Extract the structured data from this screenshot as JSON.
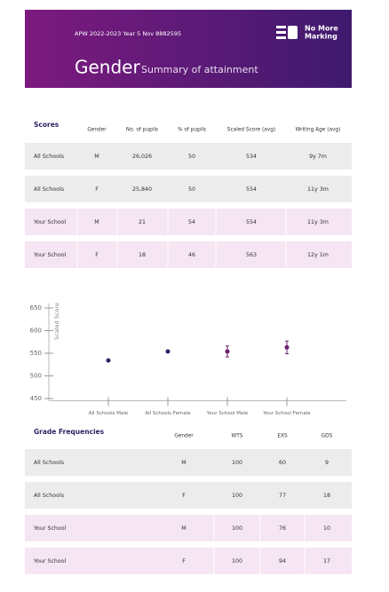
{
  "header": {
    "report": "APW 2022-2023 Year 5 Nov 8882595",
    "logo": [
      "No More",
      "Marking"
    ],
    "title": "Gender",
    "subtitle": "Summary of attainment"
  },
  "scores": {
    "title": "Scores",
    "columns": [
      "Gender",
      "No. of pupils",
      "% of pupils",
      "Scaled Score (avg)",
      "Writing Age (avg)"
    ],
    "rows": [
      [
        "All Schools",
        "M",
        "26,026",
        "50",
        "534",
        "9y 7m"
      ],
      [
        "All Schools",
        "F",
        "25,840",
        "50",
        "554",
        "11y 3m"
      ],
      [
        "Your School",
        "M",
        "21",
        "54",
        "554",
        "11y 3m"
      ],
      [
        "Your School",
        "F",
        "18",
        "46",
        "563",
        "12y 1m"
      ]
    ]
  },
  "chart_data": {
    "type": "scatter",
    "y_label": "Scaled Score",
    "categories": [
      "All Schools Male",
      "All Schools Female",
      "Your School Male",
      "Your School Female"
    ],
    "values": [
      534,
      554,
      554,
      563
    ],
    "errors": [
      null,
      null,
      12,
      14
    ],
    "colors": [
      "#2c2466",
      "#2c2466",
      "#6b1f6e",
      "#6b1f6e"
    ],
    "ylim": [
      445,
      660
    ],
    "yticks": [
      450,
      500,
      550,
      600,
      650
    ]
  },
  "grades": {
    "title": "Grade Frequencies",
    "columns": [
      "Gender",
      "WTS",
      "EXS",
      "GDS"
    ],
    "rows": [
      [
        "All Schools",
        "M",
        "100",
        "60",
        "9"
      ],
      [
        "All Schools",
        "F",
        "100",
        "77",
        "18"
      ],
      [
        "Your School",
        "M",
        "100",
        "76",
        "10"
      ],
      [
        "Your School",
        "F",
        "100",
        "94",
        "17"
      ]
    ]
  }
}
